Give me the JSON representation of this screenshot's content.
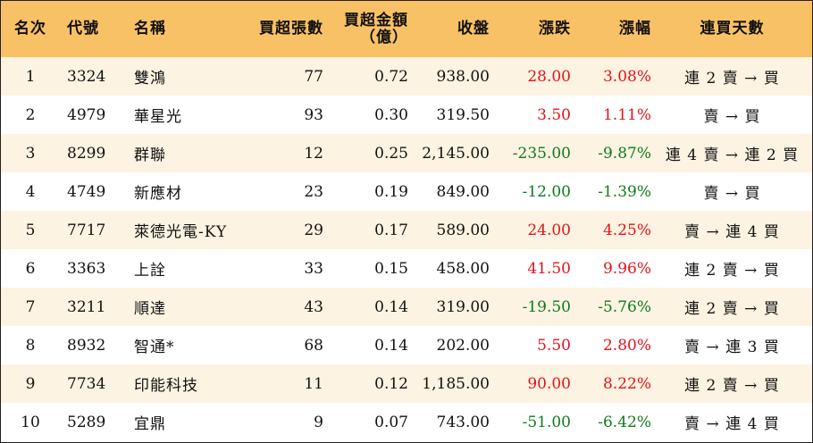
{
  "table": {
    "headers": {
      "rank": "名次",
      "code": "代號",
      "name": "名稱",
      "sheets": "買超張數",
      "amount_line1": "買超金額",
      "amount_line2": "（億）",
      "close": "收盤",
      "change": "漲跌",
      "pct": "漲幅",
      "streak": "連買天數"
    },
    "rows": [
      {
        "rank": "1",
        "code": "3324",
        "name": "雙鴻",
        "sheets": "77",
        "amount": "0.72",
        "close": "938.00",
        "change": "28.00",
        "pct": "3.08%",
        "direction": "up",
        "streak": "連 2 賣 → 買"
      },
      {
        "rank": "2",
        "code": "4979",
        "name": "華星光",
        "sheets": "93",
        "amount": "0.30",
        "close": "319.50",
        "change": "3.50",
        "pct": "1.11%",
        "direction": "up",
        "streak": "賣 → 買"
      },
      {
        "rank": "3",
        "code": "8299",
        "name": "群聯",
        "sheets": "12",
        "amount": "0.25",
        "close": "2,145.00",
        "change": "-235.00",
        "pct": "-9.87%",
        "direction": "down",
        "streak": "連 4 賣 → 連 2 買"
      },
      {
        "rank": "4",
        "code": "4749",
        "name": "新應材",
        "sheets": "23",
        "amount": "0.19",
        "close": "849.00",
        "change": "-12.00",
        "pct": "-1.39%",
        "direction": "down",
        "streak": "賣 → 買"
      },
      {
        "rank": "5",
        "code": "7717",
        "name": "萊德光電-KY",
        "sheets": "29",
        "amount": "0.17",
        "close": "589.00",
        "change": "24.00",
        "pct": "4.25%",
        "direction": "up",
        "streak": "賣 → 連 4 買"
      },
      {
        "rank": "6",
        "code": "3363",
        "name": "上詮",
        "sheets": "33",
        "amount": "0.15",
        "close": "458.00",
        "change": "41.50",
        "pct": "9.96%",
        "direction": "up",
        "streak": "連 2 賣 → 買"
      },
      {
        "rank": "7",
        "code": "3211",
        "name": "順達",
        "sheets": "43",
        "amount": "0.14",
        "close": "319.00",
        "change": "-19.50",
        "pct": "-5.76%",
        "direction": "down",
        "streak": "連 2 賣 → 買"
      },
      {
        "rank": "8",
        "code": "8932",
        "name": "智通*",
        "sheets": "68",
        "amount": "0.14",
        "close": "202.00",
        "change": "5.50",
        "pct": "2.80%",
        "direction": "up",
        "streak": "賣 → 連 3 買"
      },
      {
        "rank": "9",
        "code": "7734",
        "name": "印能科技",
        "sheets": "11",
        "amount": "0.12",
        "close": "1,185.00",
        "change": "90.00",
        "pct": "8.22%",
        "direction": "up",
        "streak": "連 2 賣 → 買"
      },
      {
        "rank": "10",
        "code": "5289",
        "name": "宜鼎",
        "sheets": "9",
        "amount": "0.07",
        "close": "743.00",
        "change": "-51.00",
        "pct": "-6.42%",
        "direction": "down",
        "streak": "賣 → 連 4 買"
      }
    ]
  },
  "colors": {
    "header_bg": "#f9c165",
    "odd_row_bg": "#fdf3e2",
    "even_row_bg": "#ffffff",
    "up": "#e0141b",
    "down": "#0f7a1c"
  }
}
